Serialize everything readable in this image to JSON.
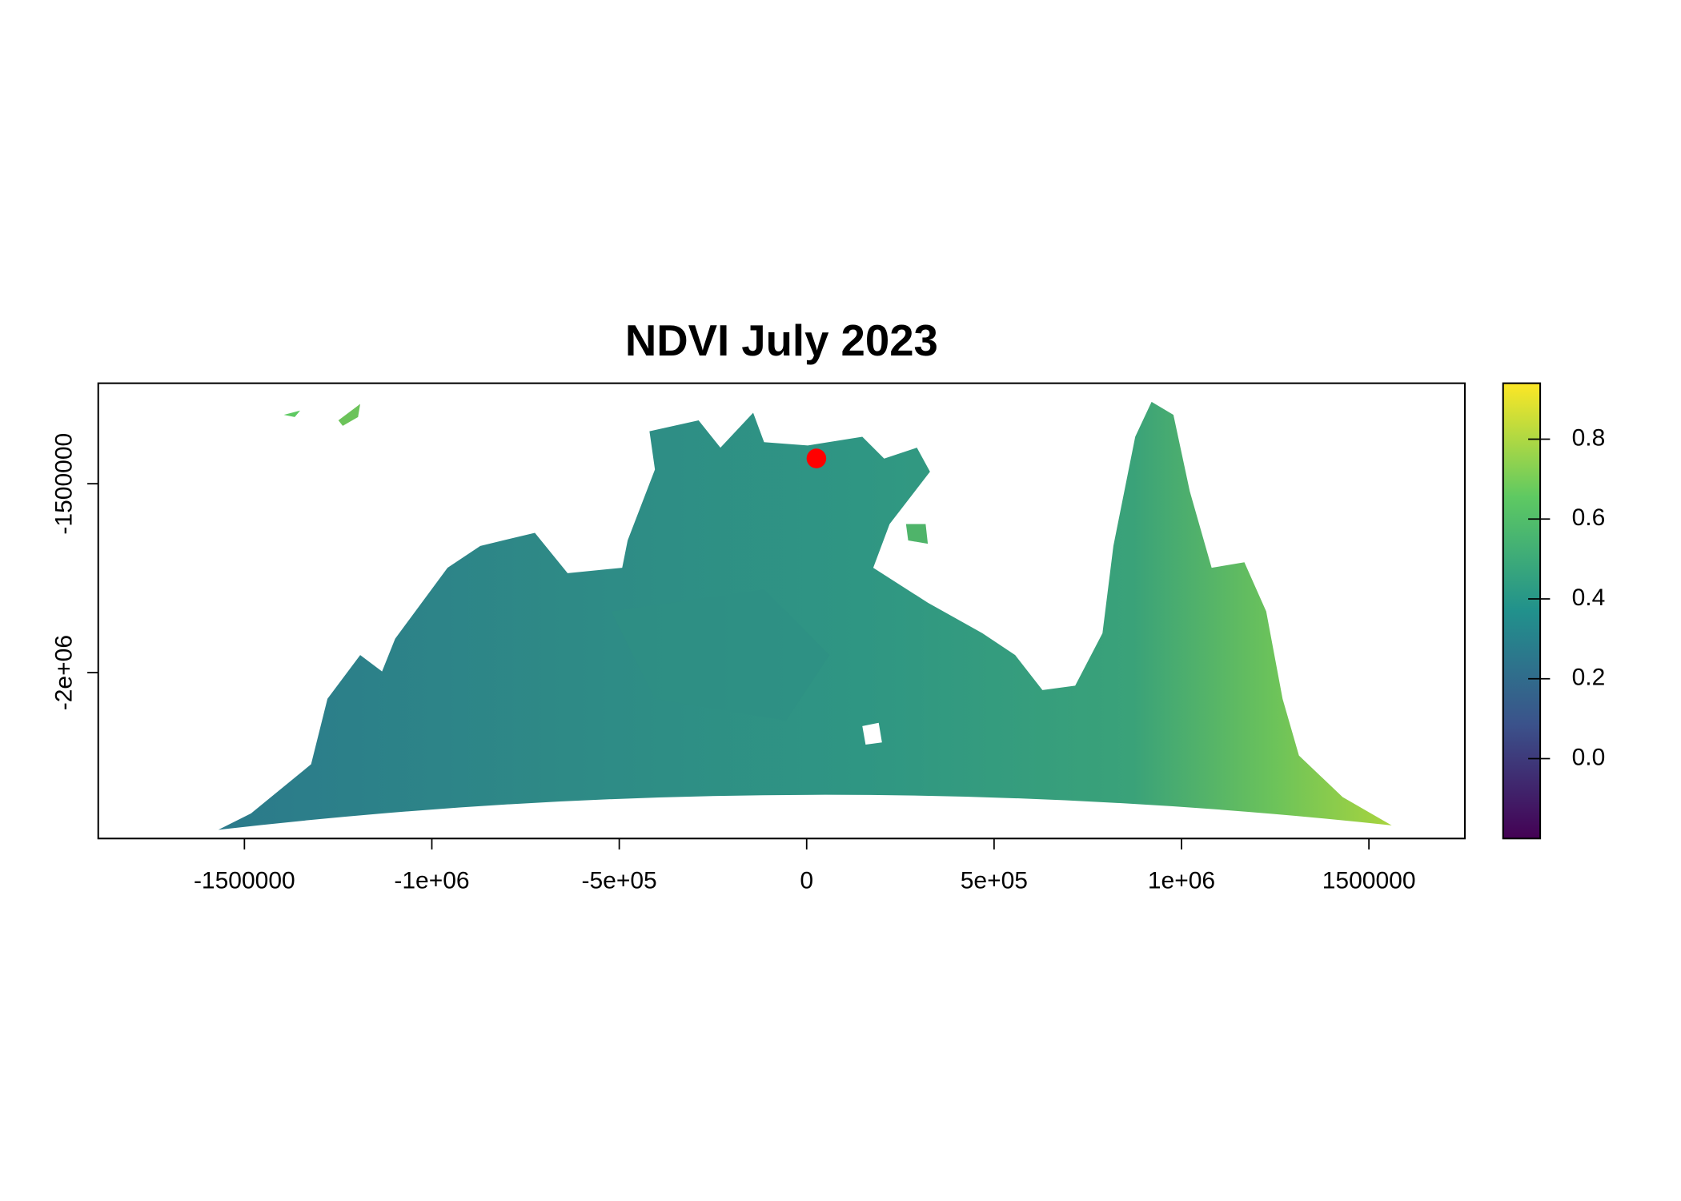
{
  "chart_data": {
    "type": "raster",
    "title": "NDVI July 2023",
    "xlim": [
      -1890000,
      1756000
    ],
    "ylim": [
      -2439000,
      -1234000
    ],
    "xticks": [
      -1500000,
      {
        "value": -1000000,
        "label": "-1e+06"
      },
      {
        "value": -500000,
        "label": "-5e+05"
      },
      0,
      {
        "value": 500000,
        "label": "5e+05"
      },
      {
        "value": 1000000,
        "label": "1e+06"
      },
      1500000
    ],
    "yticks": [
      -1500000,
      {
        "value": -2000000,
        "label": "-2e+06"
      }
    ],
    "colorbar": {
      "lim": [
        -0.2,
        0.94
      ],
      "ticks": [
        {
          "value": 0,
          "label": "0.0"
        },
        0.2,
        0.4,
        0.6,
        0.8
      ],
      "colors": [
        "#440154",
        "#3b528b",
        "#21918c",
        "#5ec962",
        "#fde725"
      ]
    },
    "marker": {
      "x": 26000,
      "y": -1433000,
      "color": "#ff0000"
    }
  }
}
